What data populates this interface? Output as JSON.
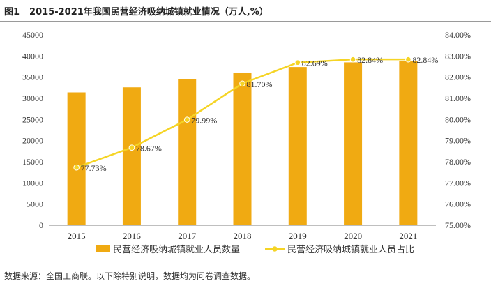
{
  "figure": {
    "label": "图1",
    "title": "2015-2021年我国民营经济吸纳城镇就业情况（万人,%）"
  },
  "source_note": "数据来源：全国工商联。以下除特别说明，数据均为问卷调查数据。",
  "colors": {
    "bar": "#F0AA12",
    "line": "#F5D425",
    "axis_text": "#333333",
    "grid": "#D9D9D9"
  },
  "chart_data": {
    "type": "bar",
    "title": "2015-2021年我国民营经济吸纳城镇就业情况（万人,%）",
    "categories": [
      "2015",
      "2016",
      "2017",
      "2018",
      "2019",
      "2020",
      "2021"
    ],
    "series": [
      {
        "name": "民营经济吸纳城镇就业人员数量",
        "type": "bar",
        "axis": "left",
        "values": [
          31400,
          32600,
          34600,
          36100,
          37400,
          38500,
          38900
        ]
      },
      {
        "name": "民营经济吸纳城镇就业人员占比",
        "type": "line",
        "axis": "right",
        "values": [
          77.73,
          78.67,
          79.99,
          81.7,
          82.69,
          82.84,
          82.84
        ],
        "labels": [
          "77.73%",
          "78.67%",
          "79.99%",
          "81.70%",
          "82.69%",
          "82.84%",
          "82.84%"
        ]
      }
    ],
    "y_left": {
      "range": [
        0,
        45000
      ],
      "ticks": [
        "0",
        "5000",
        "10000",
        "15000",
        "20000",
        "25000",
        "30000",
        "35000",
        "40000",
        "45000"
      ]
    },
    "y_right": {
      "range": [
        75,
        84
      ],
      "ticks": [
        "75.00%",
        "76.00%",
        "77.00%",
        "78.00%",
        "79.00%",
        "80.00%",
        "81.00%",
        "82.00%",
        "83.00%",
        "84.00%"
      ]
    },
    "grid": false,
    "legend_position": "bottom"
  }
}
